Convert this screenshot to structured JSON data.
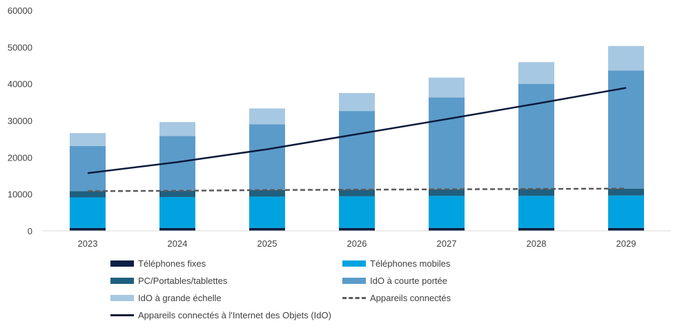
{
  "chart_data": {
    "type": "bar",
    "stacked": true,
    "categories": [
      "2023",
      "2024",
      "2025",
      "2026",
      "2027",
      "2028",
      "2029"
    ],
    "ylim": [
      0,
      60000
    ],
    "yticks": [
      0,
      10000,
      20000,
      30000,
      40000,
      50000,
      60000
    ],
    "ytick_labels": [
      "0",
      "10000",
      "20000",
      "30000",
      "40000",
      "50000",
      "60000"
    ],
    "grid": false,
    "legend_position": "bottom",
    "series": [
      {
        "name": "Téléphones fixes",
        "kind": "bar",
        "color": "#0a1f44",
        "values": [
          800,
          800,
          800,
          800,
          800,
          800,
          800
        ]
      },
      {
        "name": "Téléphones mobiles",
        "kind": "bar",
        "color": "#00a3e0",
        "values": [
          8300,
          8400,
          8500,
          8600,
          8700,
          8700,
          8800
        ]
      },
      {
        "name": "PC/Portables/tablettes",
        "kind": "bar",
        "color": "#1f5f7f",
        "values": [
          1700,
          1700,
          1800,
          1800,
          1800,
          1900,
          1900
        ]
      },
      {
        "name": "IdO à courte portée",
        "kind": "bar",
        "color": "#5b9bc9",
        "values": [
          12300,
          14900,
          17900,
          21400,
          25000,
          28600,
          32100
        ]
      },
      {
        "name": "IdO à grande échelle",
        "kind": "bar",
        "color": "#a6c8e2",
        "values": [
          3500,
          3800,
          4300,
          4900,
          5400,
          5900,
          6700
        ]
      },
      {
        "name": "Appareils connectés",
        "kind": "line",
        "dashed": true,
        "color": "#595959",
        "values": [
          10800,
          10900,
          11100,
          11200,
          11300,
          11400,
          11500
        ]
      },
      {
        "name": "Appareils connectés à l'Internet des Objets (IdO)",
        "kind": "line",
        "dashed": false,
        "color": "#0c1a3c",
        "values": [
          15700,
          18700,
          22200,
          26300,
          30400,
          34600,
          38900
        ]
      }
    ]
  }
}
